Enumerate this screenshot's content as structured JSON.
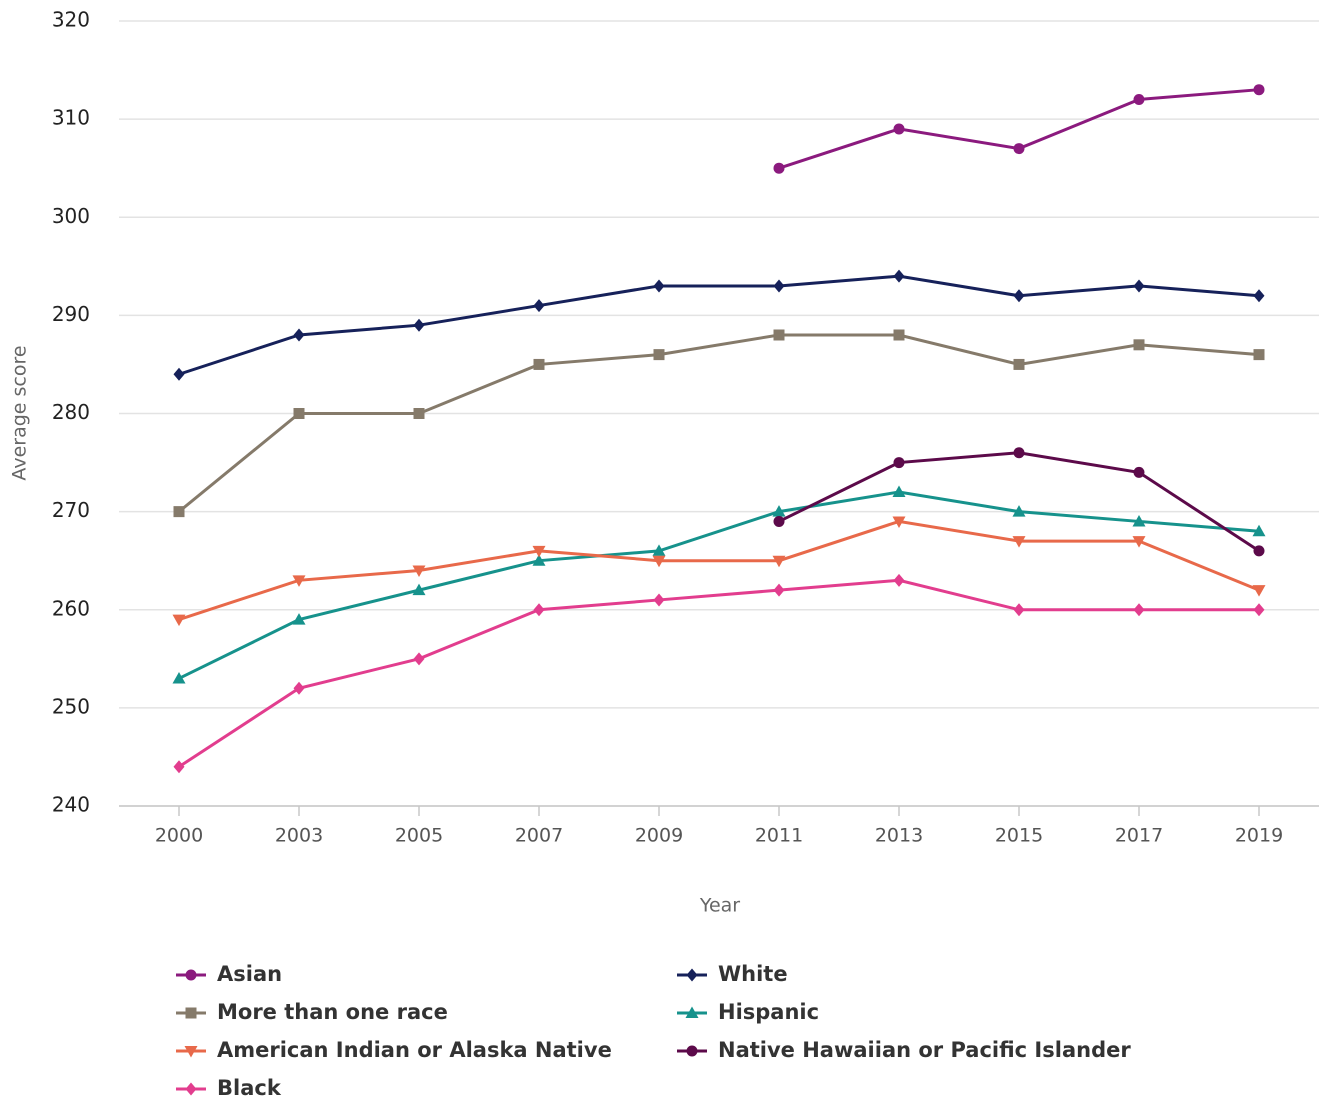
{
  "chart_data": {
    "type": "line",
    "y_label": "Average score",
    "x_label": "Year",
    "categories": [
      "2000",
      "2003",
      "2005",
      "2007",
      "2009",
      "2011",
      "2013",
      "2015",
      "2017",
      "2019"
    ],
    "ylim": [
      240,
      320
    ],
    "yticks": [
      240,
      250,
      260,
      270,
      280,
      290,
      300,
      310,
      320
    ],
    "grid": true,
    "series": [
      {
        "name": "Asian",
        "color": "#8b1a7e",
        "marker": "circle",
        "values": [
          null,
          null,
          null,
          null,
          null,
          305,
          309,
          307,
          312,
          313
        ]
      },
      {
        "name": "White",
        "color": "#16215a",
        "marker": "diamond",
        "values": [
          284,
          288,
          289,
          291,
          293,
          293,
          294,
          292,
          293,
          292
        ]
      },
      {
        "name": "More than one race",
        "color": "#857a6a",
        "marker": "square",
        "values": [
          270,
          280,
          280,
          285,
          286,
          288,
          288,
          285,
          287,
          286
        ]
      },
      {
        "name": "Hispanic",
        "color": "#16928c",
        "marker": "triangle",
        "values": [
          253,
          259,
          262,
          265,
          266,
          270,
          272,
          270,
          269,
          268
        ]
      },
      {
        "name": "American Indian or Alaska Native",
        "color": "#e8694a",
        "marker": "triangle-down",
        "values": [
          259,
          263,
          264,
          266,
          265,
          265,
          269,
          267,
          267,
          262
        ]
      },
      {
        "name": "Native Hawaiian or Pacific Islander",
        "color": "#5c0a4a",
        "marker": "circle",
        "values": [
          null,
          null,
          null,
          null,
          null,
          269,
          275,
          276,
          274,
          266
        ]
      },
      {
        "name": "Black",
        "color": "#e23d8e",
        "marker": "diamond",
        "values": [
          244,
          252,
          255,
          260,
          261,
          262,
          263,
          260,
          260,
          260
        ]
      }
    ]
  }
}
